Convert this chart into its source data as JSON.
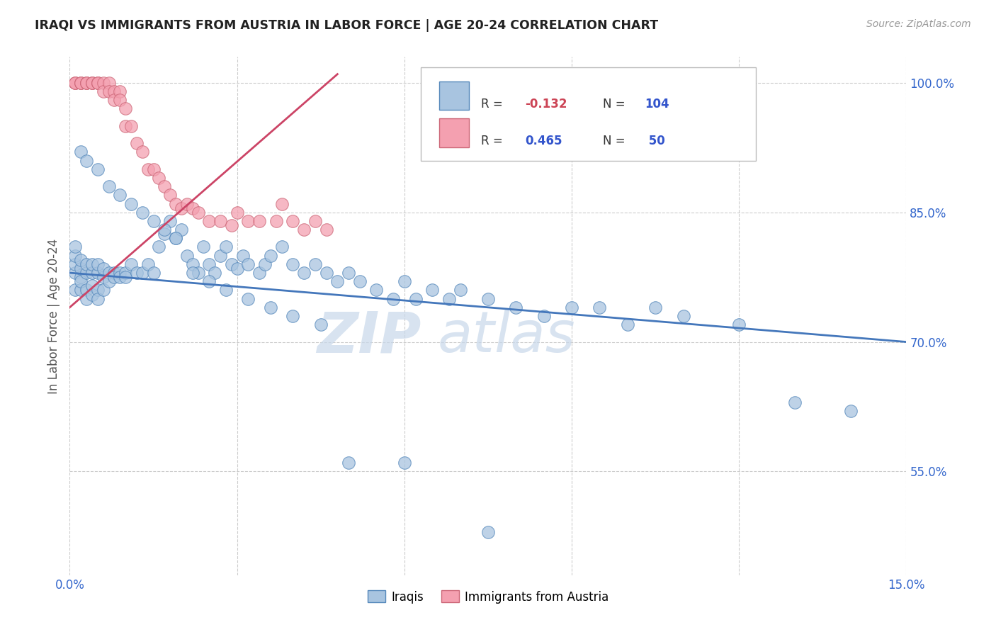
{
  "title": "IRAQI VS IMMIGRANTS FROM AUSTRIA IN LABOR FORCE | AGE 20-24 CORRELATION CHART",
  "source": "Source: ZipAtlas.com",
  "ylabel": "In Labor Force | Age 20-24",
  "xlim": [
    0.0,
    0.15
  ],
  "ylim": [
    0.43,
    1.03
  ],
  "xticks": [
    0.0,
    0.03,
    0.06,
    0.09,
    0.12,
    0.15
  ],
  "xtick_labels": [
    "0.0%",
    "",
    "",
    "",
    "",
    "15.0%"
  ],
  "yticks": [
    0.55,
    0.7,
    0.85,
    1.0
  ],
  "ytick_labels": [
    "55.0%",
    "70.0%",
    "85.0%",
    "100.0%"
  ],
  "iraqis_color": "#a8c4e0",
  "austria_color": "#f4a0b0",
  "iraqis_edge_color": "#5588bb",
  "austria_edge_color": "#cc6677",
  "iraqis_line_color": "#4477bb",
  "austria_line_color": "#cc4466",
  "watermark_color": "#c8d8ea",
  "iraqis_x": [
    0.001,
    0.001,
    0.001,
    0.001,
    0.001,
    0.002,
    0.002,
    0.002,
    0.002,
    0.002,
    0.003,
    0.003,
    0.003,
    0.003,
    0.004,
    0.004,
    0.004,
    0.004,
    0.005,
    0.005,
    0.005,
    0.005,
    0.006,
    0.006,
    0.006,
    0.007,
    0.007,
    0.008,
    0.008,
    0.009,
    0.009,
    0.01,
    0.01,
    0.011,
    0.012,
    0.013,
    0.014,
    0.015,
    0.016,
    0.017,
    0.018,
    0.019,
    0.02,
    0.021,
    0.022,
    0.023,
    0.024,
    0.025,
    0.026,
    0.027,
    0.028,
    0.029,
    0.03,
    0.031,
    0.032,
    0.034,
    0.035,
    0.036,
    0.038,
    0.04,
    0.042,
    0.044,
    0.046,
    0.048,
    0.05,
    0.052,
    0.055,
    0.058,
    0.06,
    0.062,
    0.065,
    0.068,
    0.07,
    0.075,
    0.08,
    0.085,
    0.09,
    0.095,
    0.1,
    0.105,
    0.11,
    0.12,
    0.13,
    0.14,
    0.002,
    0.003,
    0.005,
    0.007,
    0.009,
    0.011,
    0.013,
    0.015,
    0.017,
    0.019,
    0.022,
    0.025,
    0.028,
    0.032,
    0.036,
    0.04,
    0.045,
    0.05,
    0.06,
    0.075
  ],
  "iraqis_y": [
    0.78,
    0.79,
    0.8,
    0.81,
    0.76,
    0.775,
    0.785,
    0.795,
    0.76,
    0.77,
    0.78,
    0.79,
    0.76,
    0.75,
    0.78,
    0.79,
    0.765,
    0.755,
    0.78,
    0.79,
    0.76,
    0.75,
    0.775,
    0.785,
    0.76,
    0.78,
    0.77,
    0.78,
    0.775,
    0.78,
    0.775,
    0.78,
    0.775,
    0.79,
    0.78,
    0.78,
    0.79,
    0.78,
    0.81,
    0.825,
    0.84,
    0.82,
    0.83,
    0.8,
    0.79,
    0.78,
    0.81,
    0.79,
    0.78,
    0.8,
    0.81,
    0.79,
    0.785,
    0.8,
    0.79,
    0.78,
    0.79,
    0.8,
    0.81,
    0.79,
    0.78,
    0.79,
    0.78,
    0.77,
    0.78,
    0.77,
    0.76,
    0.75,
    0.77,
    0.75,
    0.76,
    0.75,
    0.76,
    0.75,
    0.74,
    0.73,
    0.74,
    0.74,
    0.72,
    0.74,
    0.73,
    0.72,
    0.63,
    0.62,
    0.92,
    0.91,
    0.9,
    0.88,
    0.87,
    0.86,
    0.85,
    0.84,
    0.83,
    0.82,
    0.78,
    0.77,
    0.76,
    0.75,
    0.74,
    0.73,
    0.72,
    0.56,
    0.56,
    0.48
  ],
  "austria_x": [
    0.001,
    0.001,
    0.001,
    0.002,
    0.002,
    0.002,
    0.003,
    0.003,
    0.003,
    0.004,
    0.004,
    0.004,
    0.005,
    0.005,
    0.005,
    0.006,
    0.006,
    0.007,
    0.007,
    0.008,
    0.008,
    0.009,
    0.009,
    0.01,
    0.01,
    0.011,
    0.012,
    0.013,
    0.014,
    0.015,
    0.016,
    0.017,
    0.018,
    0.019,
    0.02,
    0.021,
    0.022,
    0.023,
    0.025,
    0.027,
    0.029,
    0.03,
    0.032,
    0.034,
    0.037,
    0.038,
    0.04,
    0.042,
    0.044,
    0.046
  ],
  "austria_y": [
    1.0,
    1.0,
    1.0,
    1.0,
    1.0,
    1.0,
    1.0,
    1.0,
    1.0,
    1.0,
    1.0,
    1.0,
    1.0,
    1.0,
    1.0,
    1.0,
    0.99,
    1.0,
    0.99,
    0.99,
    0.98,
    0.99,
    0.98,
    0.97,
    0.95,
    0.95,
    0.93,
    0.92,
    0.9,
    0.9,
    0.89,
    0.88,
    0.87,
    0.86,
    0.855,
    0.86,
    0.855,
    0.85,
    0.84,
    0.84,
    0.835,
    0.85,
    0.84,
    0.84,
    0.84,
    0.86,
    0.84,
    0.83,
    0.84,
    0.83
  ],
  "iraq_trendline_x": [
    0.0,
    0.15
  ],
  "iraq_trendline_y": [
    0.78,
    0.7
  ],
  "austria_trendline_x": [
    0.0,
    0.048
  ],
  "austria_trendline_y": [
    0.74,
    1.01
  ]
}
